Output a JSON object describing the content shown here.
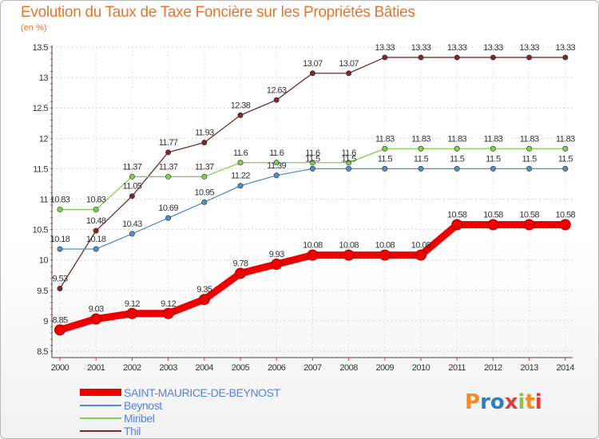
{
  "title": "Evolution du Taux de Taxe Foncière sur les Propriétés Bâties",
  "unit_label": "(en %)",
  "colors": {
    "title": "#e8742c",
    "legend_text": "#5a80d8",
    "axis_text": "#333333",
    "grid": "#d0d0d0"
  },
  "logo": {
    "text": "Proxiti",
    "letter_colors": [
      "#f28c28",
      "#2d7fc1",
      "#2d7fc1",
      "#e33b3b",
      "#8bc34a",
      "#f28c28",
      "#e33b3b"
    ]
  },
  "chart_data": {
    "type": "line",
    "title": "Evolution du Taux de Taxe Foncière sur les Propriétés Bâties",
    "ylabel": "(en %)",
    "xlabel": "",
    "x": [
      "2000",
      "2001",
      "2002",
      "2003",
      "2004",
      "2005",
      "2006",
      "2007",
      "2008",
      "2009",
      "2010",
      "2011",
      "2012",
      "2013",
      "2014"
    ],
    "yticks": [
      "8.5",
      "9",
      "9.5",
      "10",
      "10.5",
      "11",
      "11.5",
      "12",
      "12.5",
      "13",
      "13.5"
    ],
    "ylim": [
      8.5,
      13.5
    ],
    "grid": true,
    "legend_position": "bottom-left",
    "series": [
      {
        "name": "SAINT-MAURICE-DE-BEYNOST",
        "color": "#ee0000",
        "line_width": 9,
        "values": [
          8.85,
          9.03,
          9.12,
          9.12,
          9.35,
          9.78,
          9.93,
          10.08,
          10.08,
          10.08,
          10.08,
          10.58,
          10.58,
          10.58,
          10.58
        ],
        "labels": [
          "8.85",
          "9.03",
          "9.12",
          "9.12",
          "9.35",
          "9.78",
          "9.93",
          "10.08",
          "10.08",
          "10.08",
          "10.08",
          "10.58",
          "10.58",
          "10.58",
          "10.58"
        ]
      },
      {
        "name": "Beynost",
        "color": "#4f8ec9",
        "line_width": 1.3,
        "values": [
          10.18,
          10.18,
          10.43,
          10.69,
          10.95,
          11.22,
          11.39,
          11.5,
          11.5,
          11.5,
          11.5,
          11.5,
          11.5,
          11.5,
          11.5
        ],
        "labels": [
          "10.18",
          "10.18",
          "10.43",
          "10.69",
          "10.95",
          "11.22",
          "11.39",
          "11.5",
          "11.5",
          "11.5",
          "11.5",
          "11.5",
          "11.5",
          "11.5",
          "11.5"
        ]
      },
      {
        "name": "Miribel",
        "color": "#7ed04f",
        "line_width": 1.3,
        "values": [
          10.83,
          10.83,
          11.37,
          11.37,
          11.37,
          11.6,
          11.6,
          11.6,
          11.6,
          11.83,
          11.83,
          11.83,
          11.83,
          11.83,
          11.83
        ],
        "labels": [
          "10.83",
          "10.83",
          "11.37",
          "11.37",
          "11.37",
          "11.6",
          "11.6",
          "11.6",
          "11.6",
          "11.83",
          "11.83",
          "11.83",
          "11.83",
          "11.83",
          "11.83"
        ]
      },
      {
        "name": "Thil",
        "color": "#7a2a2a",
        "line_width": 1.3,
        "values": [
          9.53,
          10.48,
          11.05,
          11.77,
          11.93,
          12.38,
          12.63,
          13.07,
          13.07,
          13.33,
          13.33,
          13.33,
          13.33,
          13.33,
          13.33
        ],
        "labels": [
          "9.53",
          "10.48",
          "11.05",
          "11.77",
          "11.93",
          "12.38",
          "12.63",
          "13.07",
          "13.07",
          "13.33",
          "13.33",
          "13.33",
          "13.33",
          "13.33",
          "13.33"
        ]
      }
    ]
  }
}
